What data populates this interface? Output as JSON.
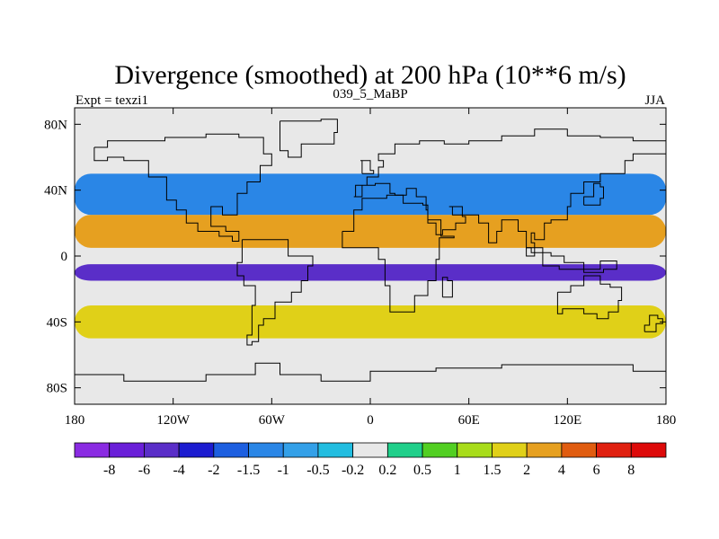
{
  "chart_data": {
    "type": "heatmap",
    "title": "Divergence (smoothed) at 200 hPa (10**6 m/s)",
    "left_label": "Expt = texzi1",
    "center_label": "039_5_MaBP",
    "right_label": "JJA",
    "x_ticks": [
      "180",
      "120W",
      "60W",
      "0",
      "60E",
      "120E",
      "180"
    ],
    "x_tick_values": [
      -180,
      -120,
      -60,
      0,
      60,
      120,
      180
    ],
    "y_ticks": [
      "80N",
      "40N",
      "0",
      "40S",
      "80S"
    ],
    "y_tick_values": [
      80,
      40,
      0,
      -40,
      -80
    ],
    "xlim": [
      -180,
      180
    ],
    "ylim": [
      -90,
      90
    ],
    "colorbar": {
      "levels": [
        "-8",
        "-6",
        "-4",
        "-2",
        "-1.5",
        "-1",
        "-0.5",
        "-0.2",
        "0.2",
        "0.5",
        "1",
        "1.5",
        "2",
        "4",
        "6",
        "8"
      ],
      "colors": [
        "#8a2be2",
        "#6a1fd8",
        "#5a2ec8",
        "#1c1cd0",
        "#1d5fe0",
        "#2a86e6",
        "#33a0e8",
        "#22bde0",
        "#e8e8e8",
        "#20cf8a",
        "#52cf22",
        "#a8dc1a",
        "#e0d018",
        "#e6a020",
        "#e05c10",
        "#e02010",
        "#dd0a0a"
      ]
    },
    "fields": [
      {
        "lon_range": [
          -180,
          180
        ],
        "lat_range": [
          -15,
          -5
        ],
        "level": "-4"
      },
      {
        "lon_range": [
          -180,
          180
        ],
        "lat_range": [
          5,
          25
        ],
        "level": "2"
      },
      {
        "lon_range": [
          -180,
          180
        ],
        "lat_range": [
          -50,
          -30
        ],
        "level": "1.5"
      },
      {
        "lon_range": [
          -180,
          180
        ],
        "lat_range": [
          25,
          50
        ],
        "level": "-1"
      }
    ]
  }
}
